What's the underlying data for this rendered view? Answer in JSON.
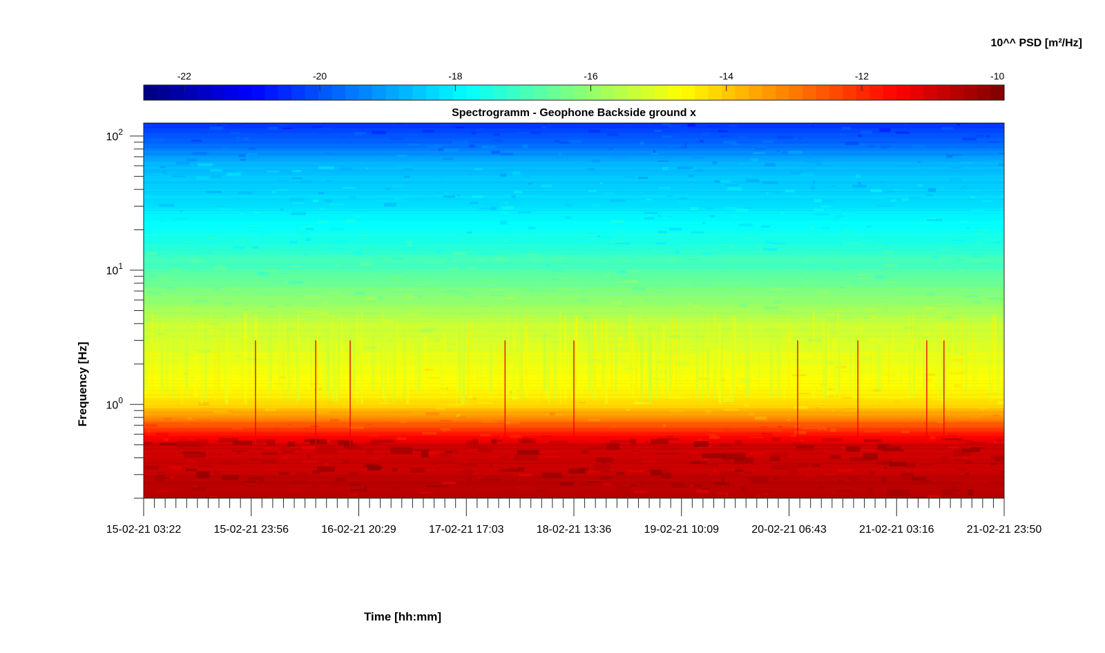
{
  "chart_data": {
    "type": "heatmap",
    "title": "Spectrogramm - Geophone Backside ground x",
    "xlabel": "Time [hh:mm]",
    "ylabel": "Frequency [Hz]",
    "colorbar_label": "10^^ PSD [m²/Hz]",
    "colormap": "jet",
    "clim": [
      -22.6,
      -9.9
    ],
    "colorbar_ticks": [
      -22,
      -20,
      -18,
      -16,
      -14,
      -12,
      -10
    ],
    "y_scale": "log",
    "ylim": [
      0.2,
      125
    ],
    "y_ticks": [
      {
        "value": 1,
        "base": "10",
        "exp": "0"
      },
      {
        "value": 10,
        "base": "10",
        "exp": "1"
      },
      {
        "value": 100,
        "base": "10",
        "exp": "2"
      }
    ],
    "x_tick_labels": [
      "15-02-21 03:22",
      "15-02-21 23:56",
      "16-02-21 20:29",
      "17-02-21 17:03",
      "18-02-21 13:36",
      "19-02-21 10:09",
      "20-02-21 06:43",
      "21-02-21 03:16",
      "21-02-21 23:50"
    ],
    "x_minor_per_interval": 10,
    "psd_profile": [
      {
        "f": 0.2,
        "psd": -10.6
      },
      {
        "f": 0.5,
        "psd": -10.9
      },
      {
        "f": 0.7,
        "psd": -12.5
      },
      {
        "f": 1.0,
        "psd": -14.3
      },
      {
        "f": 2.0,
        "psd": -14.9
      },
      {
        "f": 4.0,
        "psd": -15.4
      },
      {
        "f": 7.0,
        "psd": -16.3
      },
      {
        "f": 15.0,
        "psd": -17.4
      },
      {
        "f": 30.0,
        "psd": -18.2
      },
      {
        "f": 60.0,
        "psd": -18.7
      },
      {
        "f": 90.0,
        "psd": -19.8
      },
      {
        "f": 125.0,
        "psd": -20.4
      }
    ],
    "transient_events_day_fraction": [
      0.13,
      0.2,
      0.24,
      0.42,
      0.5,
      0.76,
      0.83,
      0.91,
      0.93
    ]
  }
}
